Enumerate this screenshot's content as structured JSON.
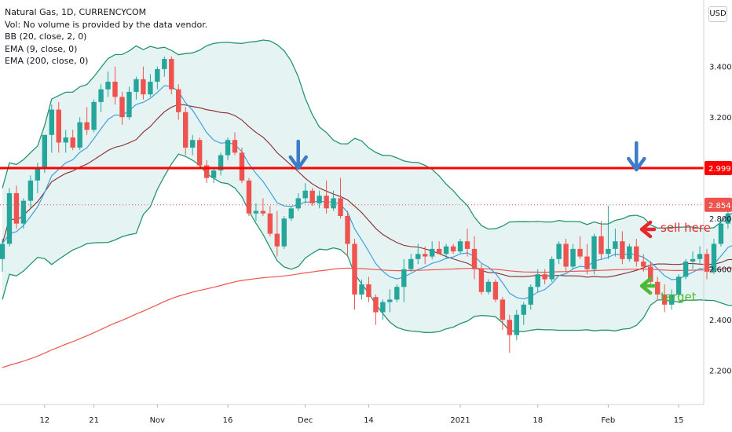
{
  "header": {
    "symbol_line": "Natural Gas, 1D, CURRENCYCOM",
    "volume_note": "Vol: No volume is provided by the data vendor.",
    "indicators": [
      "BB (20, close, 2, 0)",
      "EMA (9, close, 0)",
      "EMA (200, close, 0)"
    ]
  },
  "currency_badge": "USD",
  "annotations": {
    "sell_label": "sell here",
    "target_label": "target",
    "sell_color": "#e8262c",
    "target_color": "#4cbb33",
    "arrow_down_color": "#3d7cc9"
  },
  "colors": {
    "up": "#26a69a",
    "down": "#ef5350",
    "bb_band": "#24946f",
    "bb_fill": "#e5f4f3",
    "ema_fast": "#3f9fe0",
    "ema_mid": "#8a2a2a",
    "ema_slow": "#ef5350",
    "resistance": "#ff0000"
  },
  "chart_data": {
    "type": "candlestick",
    "title": "Natural Gas, 1D, CURRENCYCOM",
    "x_tick_labels": [
      "12",
      "21",
      "Nov",
      "16",
      "Dec",
      "14",
      "2021",
      "18",
      "Feb",
      "15"
    ],
    "y_tick_labels": [
      "2.200",
      "2.400",
      "2.600",
      "2.800",
      "3.000",
      "3.200",
      "3.400"
    ],
    "ylim": [
      2.12,
      3.65
    ],
    "grid": false,
    "resistance_level": 2.999,
    "current_price": 2.854,
    "candles": [
      {
        "o": 2.64,
        "h": 2.72,
        "l": 2.59,
        "c": 2.7
      },
      {
        "o": 2.7,
        "h": 2.92,
        "l": 2.69,
        "c": 2.9
      },
      {
        "o": 2.9,
        "h": 2.93,
        "l": 2.76,
        "c": 2.78
      },
      {
        "o": 2.78,
        "h": 2.88,
        "l": 2.76,
        "c": 2.87
      },
      {
        "o": 2.87,
        "h": 2.97,
        "l": 2.84,
        "c": 2.95
      },
      {
        "o": 2.95,
        "h": 3.02,
        "l": 2.9,
        "c": 3.0
      },
      {
        "o": 3.0,
        "h": 3.13,
        "l": 2.98,
        "c": 3.13
      },
      {
        "o": 3.13,
        "h": 3.25,
        "l": 3.06,
        "c": 3.23
      },
      {
        "o": 3.23,
        "h": 3.26,
        "l": 3.06,
        "c": 3.1
      },
      {
        "o": 3.1,
        "h": 3.15,
        "l": 3.06,
        "c": 3.12
      },
      {
        "o": 3.12,
        "h": 3.15,
        "l": 3.07,
        "c": 3.08
      },
      {
        "o": 3.08,
        "h": 3.2,
        "l": 3.07,
        "c": 3.18
      },
      {
        "o": 3.18,
        "h": 3.24,
        "l": 3.13,
        "c": 3.15
      },
      {
        "o": 3.15,
        "h": 3.27,
        "l": 3.14,
        "c": 3.26
      },
      {
        "o": 3.26,
        "h": 3.33,
        "l": 3.22,
        "c": 3.31
      },
      {
        "o": 3.31,
        "h": 3.38,
        "l": 3.28,
        "c": 3.34
      },
      {
        "o": 3.34,
        "h": 3.4,
        "l": 3.25,
        "c": 3.28
      },
      {
        "o": 3.28,
        "h": 3.3,
        "l": 3.17,
        "c": 3.2
      },
      {
        "o": 3.2,
        "h": 3.32,
        "l": 3.19,
        "c": 3.3
      },
      {
        "o": 3.3,
        "h": 3.36,
        "l": 3.27,
        "c": 3.35
      },
      {
        "o": 3.35,
        "h": 3.4,
        "l": 3.27,
        "c": 3.29
      },
      {
        "o": 3.29,
        "h": 3.37,
        "l": 3.28,
        "c": 3.34
      },
      {
        "o": 3.34,
        "h": 3.4,
        "l": 3.31,
        "c": 3.39
      },
      {
        "o": 3.39,
        "h": 3.44,
        "l": 3.36,
        "c": 3.43
      },
      {
        "o": 3.43,
        "h": 3.44,
        "l": 3.29,
        "c": 3.31
      },
      {
        "o": 3.31,
        "h": 3.33,
        "l": 3.19,
        "c": 3.22
      },
      {
        "o": 3.22,
        "h": 3.24,
        "l": 3.05,
        "c": 3.08
      },
      {
        "o": 3.08,
        "h": 3.13,
        "l": 3.05,
        "c": 3.11
      },
      {
        "o": 3.11,
        "h": 3.12,
        "l": 3.0,
        "c": 3.01
      },
      {
        "o": 3.01,
        "h": 3.03,
        "l": 2.94,
        "c": 2.96
      },
      {
        "o": 2.96,
        "h": 3.0,
        "l": 2.94,
        "c": 2.99
      },
      {
        "o": 2.99,
        "h": 3.06,
        "l": 2.97,
        "c": 3.05
      },
      {
        "o": 3.05,
        "h": 3.12,
        "l": 3.03,
        "c": 3.11
      },
      {
        "o": 3.11,
        "h": 3.14,
        "l": 3.05,
        "c": 3.06
      },
      {
        "o": 3.06,
        "h": 3.08,
        "l": 2.94,
        "c": 2.95
      },
      {
        "o": 2.95,
        "h": 2.96,
        "l": 2.81,
        "c": 2.82
      },
      {
        "o": 2.82,
        "h": 2.86,
        "l": 2.79,
        "c": 2.83
      },
      {
        "o": 2.83,
        "h": 2.88,
        "l": 2.81,
        "c": 2.82
      },
      {
        "o": 2.82,
        "h": 2.85,
        "l": 2.73,
        "c": 2.74
      },
      {
        "o": 2.74,
        "h": 2.83,
        "l": 2.65,
        "c": 2.69
      },
      {
        "o": 2.69,
        "h": 2.81,
        "l": 2.68,
        "c": 2.8
      },
      {
        "o": 2.8,
        "h": 2.85,
        "l": 2.79,
        "c": 2.84
      },
      {
        "o": 2.84,
        "h": 2.9,
        "l": 2.83,
        "c": 2.88
      },
      {
        "o": 2.88,
        "h": 2.94,
        "l": 2.86,
        "c": 2.91
      },
      {
        "o": 2.91,
        "h": 2.92,
        "l": 2.85,
        "c": 2.86
      },
      {
        "o": 2.86,
        "h": 2.91,
        "l": 2.84,
        "c": 2.89
      },
      {
        "o": 2.89,
        "h": 2.95,
        "l": 2.82,
        "c": 2.84
      },
      {
        "o": 2.84,
        "h": 2.91,
        "l": 2.83,
        "c": 2.88
      },
      {
        "o": 2.88,
        "h": 2.96,
        "l": 2.8,
        "c": 2.81
      },
      {
        "o": 2.81,
        "h": 2.83,
        "l": 2.65,
        "c": 2.7
      },
      {
        "o": 2.7,
        "h": 2.72,
        "l": 2.44,
        "c": 2.5
      },
      {
        "o": 2.5,
        "h": 2.56,
        "l": 2.48,
        "c": 2.54
      },
      {
        "o": 2.54,
        "h": 2.57,
        "l": 2.47,
        "c": 2.49
      },
      {
        "o": 2.49,
        "h": 2.5,
        "l": 2.38,
        "c": 2.43
      },
      {
        "o": 2.43,
        "h": 2.48,
        "l": 2.4,
        "c": 2.47
      },
      {
        "o": 2.47,
        "h": 2.52,
        "l": 2.43,
        "c": 2.48
      },
      {
        "o": 2.48,
        "h": 2.54,
        "l": 2.47,
        "c": 2.53
      },
      {
        "o": 2.53,
        "h": 2.64,
        "l": 2.47,
        "c": 2.6
      },
      {
        "o": 2.6,
        "h": 2.66,
        "l": 2.59,
        "c": 2.64
      },
      {
        "o": 2.64,
        "h": 2.7,
        "l": 2.62,
        "c": 2.66
      },
      {
        "o": 2.66,
        "h": 2.69,
        "l": 2.62,
        "c": 2.65
      },
      {
        "o": 2.65,
        "h": 2.71,
        "l": 2.64,
        "c": 2.68
      },
      {
        "o": 2.68,
        "h": 2.71,
        "l": 2.66,
        "c": 2.66
      },
      {
        "o": 2.66,
        "h": 2.7,
        "l": 2.64,
        "c": 2.69
      },
      {
        "o": 2.69,
        "h": 2.7,
        "l": 2.66,
        "c": 2.67
      },
      {
        "o": 2.67,
        "h": 2.72,
        "l": 2.66,
        "c": 2.71
      },
      {
        "o": 2.71,
        "h": 2.76,
        "l": 2.65,
        "c": 2.68
      },
      {
        "o": 2.68,
        "h": 2.73,
        "l": 2.56,
        "c": 2.6
      },
      {
        "o": 2.6,
        "h": 2.62,
        "l": 2.5,
        "c": 2.51
      },
      {
        "o": 2.51,
        "h": 2.56,
        "l": 2.5,
        "c": 2.55
      },
      {
        "o": 2.55,
        "h": 2.56,
        "l": 2.47,
        "c": 2.48
      },
      {
        "o": 2.48,
        "h": 2.49,
        "l": 2.36,
        "c": 2.4
      },
      {
        "o": 2.4,
        "h": 2.42,
        "l": 2.27,
        "c": 2.34
      },
      {
        "o": 2.34,
        "h": 2.44,
        "l": 2.32,
        "c": 2.42
      },
      {
        "o": 2.42,
        "h": 2.47,
        "l": 2.38,
        "c": 2.46
      },
      {
        "o": 2.46,
        "h": 2.54,
        "l": 2.44,
        "c": 2.53
      },
      {
        "o": 2.53,
        "h": 2.6,
        "l": 2.51,
        "c": 2.58
      },
      {
        "o": 2.58,
        "h": 2.6,
        "l": 2.54,
        "c": 2.56
      },
      {
        "o": 2.56,
        "h": 2.65,
        "l": 2.55,
        "c": 2.64
      },
      {
        "o": 2.64,
        "h": 2.71,
        "l": 2.62,
        "c": 2.7
      },
      {
        "o": 2.7,
        "h": 2.72,
        "l": 2.59,
        "c": 2.61
      },
      {
        "o": 2.61,
        "h": 2.7,
        "l": 2.6,
        "c": 2.68
      },
      {
        "o": 2.68,
        "h": 2.73,
        "l": 2.64,
        "c": 2.65
      },
      {
        "o": 2.65,
        "h": 2.7,
        "l": 2.58,
        "c": 2.6
      },
      {
        "o": 2.6,
        "h": 2.74,
        "l": 2.58,
        "c": 2.73
      },
      {
        "o": 2.73,
        "h": 2.79,
        "l": 2.64,
        "c": 2.66
      },
      {
        "o": 2.66,
        "h": 2.85,
        "l": 2.64,
        "c": 2.68
      },
      {
        "o": 2.68,
        "h": 2.76,
        "l": 2.65,
        "c": 2.71
      },
      {
        "o": 2.71,
        "h": 2.75,
        "l": 2.62,
        "c": 2.64
      },
      {
        "o": 2.64,
        "h": 2.7,
        "l": 2.63,
        "c": 2.69
      },
      {
        "o": 2.69,
        "h": 2.72,
        "l": 2.61,
        "c": 2.63
      },
      {
        "o": 2.63,
        "h": 2.66,
        "l": 2.59,
        "c": 2.61
      },
      {
        "o": 2.61,
        "h": 2.63,
        "l": 2.53,
        "c": 2.55
      },
      {
        "o": 2.55,
        "h": 2.57,
        "l": 2.48,
        "c": 2.5
      },
      {
        "o": 2.5,
        "h": 2.54,
        "l": 2.43,
        "c": 2.46
      },
      {
        "o": 2.46,
        "h": 2.52,
        "l": 2.44,
        "c": 2.5
      },
      {
        "o": 2.5,
        "h": 2.58,
        "l": 2.49,
        "c": 2.57
      },
      {
        "o": 2.57,
        "h": 2.64,
        "l": 2.56,
        "c": 2.63
      },
      {
        "o": 2.63,
        "h": 2.67,
        "l": 2.6,
        "c": 2.64
      },
      {
        "o": 2.64,
        "h": 2.69,
        "l": 2.62,
        "c": 2.66
      },
      {
        "o": 2.66,
        "h": 2.68,
        "l": 2.56,
        "c": 2.59
      },
      {
        "o": 2.59,
        "h": 2.72,
        "l": 2.58,
        "c": 2.7
      },
      {
        "o": 2.7,
        "h": 2.8,
        "l": 2.69,
        "c": 2.78
      },
      {
        "o": 2.78,
        "h": 2.85,
        "l": 2.76,
        "c": 2.82
      },
      {
        "o": 2.82,
        "h": 2.93,
        "l": 2.73,
        "c": 2.75
      },
      {
        "o": 2.75,
        "h": 2.95,
        "l": 2.74,
        "c": 2.93
      },
      {
        "o": 2.93,
        "h": 2.96,
        "l": 2.82,
        "c": 2.854
      }
    ]
  }
}
